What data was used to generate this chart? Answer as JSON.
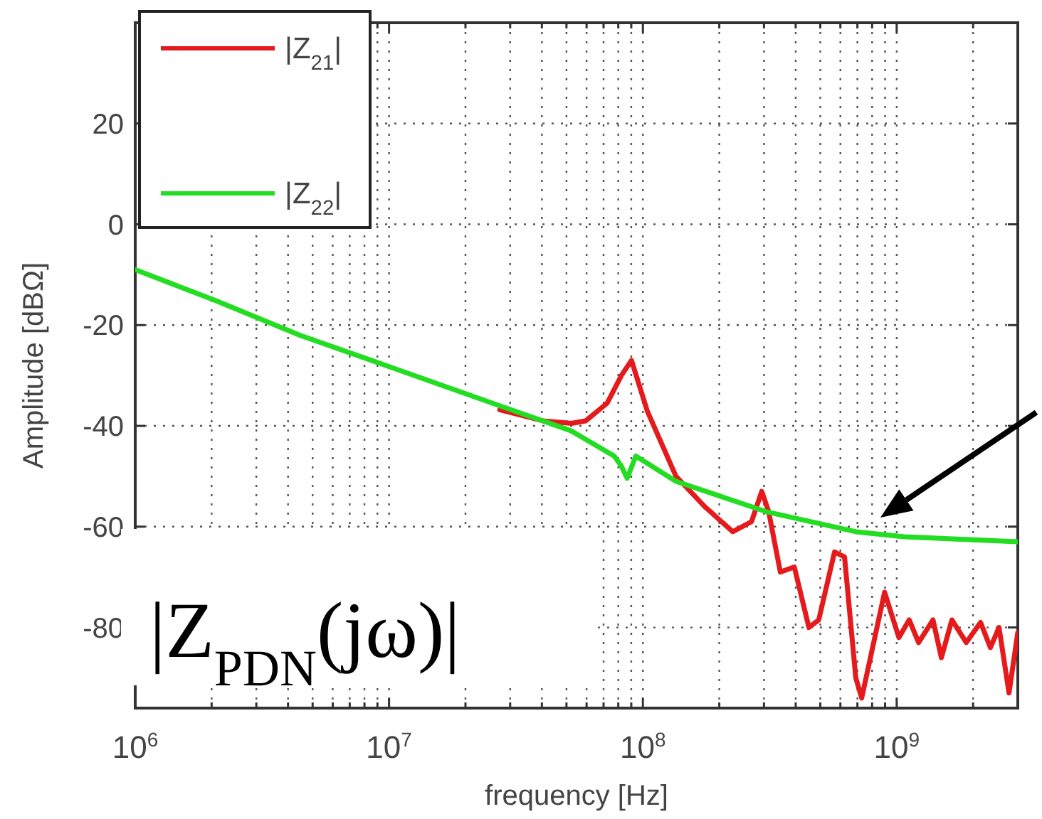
{
  "chart_data": {
    "type": "line",
    "xlabel": "frequency [Hz]",
    "ylabel": "Amplitude [dBΩ]",
    "log": "x",
    "grid": true,
    "legend": "top left",
    "line_style": "solid",
    "xlim": [
      1000000,
      3000000000
    ],
    "ylim": [
      -96,
      40
    ],
    "xticks": [
      {
        "value": 1000000,
        "label": "10$^{6}$"
      },
      {
        "value": 2000000,
        "label": null
      },
      {
        "value": 3000000,
        "label": null
      },
      {
        "value": 4000000,
        "label": null
      },
      {
        "value": 5000000,
        "label": null
      },
      {
        "value": 6000000,
        "label": null
      },
      {
        "value": 7000000,
        "label": null
      },
      {
        "value": 8000000,
        "label": null
      },
      {
        "value": 9000000,
        "label": null
      },
      {
        "value": 10000000,
        "label": "10$^{7}$"
      },
      {
        "value": 20000000,
        "label": null
      },
      {
        "value": 30000000,
        "label": null
      },
      {
        "value": 40000000,
        "label": null
      },
      {
        "value": 50000000,
        "label": null
      },
      {
        "value": 60000000,
        "label": null
      },
      {
        "value": 70000000,
        "label": null
      },
      {
        "value": 80000000,
        "label": null
      },
      {
        "value": 90000000,
        "label": null
      },
      {
        "value": 100000000,
        "label": "10$^{8}$"
      },
      {
        "value": 200000000,
        "label": null
      },
      {
        "value": 300000000,
        "label": null
      },
      {
        "value": 400000000,
        "label": null
      },
      {
        "value": 500000000,
        "label": null
      },
      {
        "value": 600000000,
        "label": null
      },
      {
        "value": 700000000,
        "label": null
      },
      {
        "value": 800000000,
        "label": null
      },
      {
        "value": 900000000,
        "label": null
      },
      {
        "value": 1000000000,
        "label": "10$^{9}$"
      },
      {
        "value": 2000000000,
        "label": null
      }
    ],
    "yticks": [
      -80,
      -60,
      -40,
      -20,
      0,
      20
    ],
    "series": [
      {
        "name": "|Z$_{21}$|",
        "color": "#e41a1c",
        "x": [
          27300000,
          40400000,
          52300000,
          59500000,
          72300000,
          82300000,
          90200000,
          104000000,
          135000000,
          175000000,
          226000000,
          268000000,
          294000000,
          313000000,
          348000000,
          395000000,
          451000000,
          493000000,
          569000000,
          623000000,
          690000000,
          728000000,
          896000000,
          1020000000,
          1120000000,
          1220000000,
          1390000000,
          1500000000,
          1650000000,
          1880000000,
          2140000000,
          2340000000,
          2530000000,
          2770000000,
          3000000000
        ],
        "values": [
          -36.8,
          -39,
          -39.5,
          -39,
          -35.5,
          -30,
          -27,
          -37,
          -50,
          -56,
          -61,
          -59,
          -53,
          -57,
          -69,
          -68,
          -80,
          -78.5,
          -65,
          -66,
          -90,
          -94,
          -73,
          -82,
          -78.5,
          -83,
          -78.5,
          -86,
          -78.5,
          -83,
          -79,
          -84,
          -80,
          -93,
          -81
        ]
      },
      {
        "name": "|Z$_{22}$|",
        "color": "#22dd22",
        "x": [
          1000000,
          2040000,
          4450000,
          9700000,
          27300000,
          52300000,
          77100000,
          82300000,
          86700000,
          93800000,
          135000000,
          305000000,
          690000000,
          1070000000,
          3000000000
        ],
        "values": [
          -9,
          -15,
          -22,
          -28,
          -36,
          -41,
          -46,
          -48,
          -50.4,
          -46,
          -51,
          -57,
          -61,
          -62,
          -63
        ]
      }
    ],
    "annotations": [
      "|Z$_{PDN}$(jω)|"
    ]
  }
}
